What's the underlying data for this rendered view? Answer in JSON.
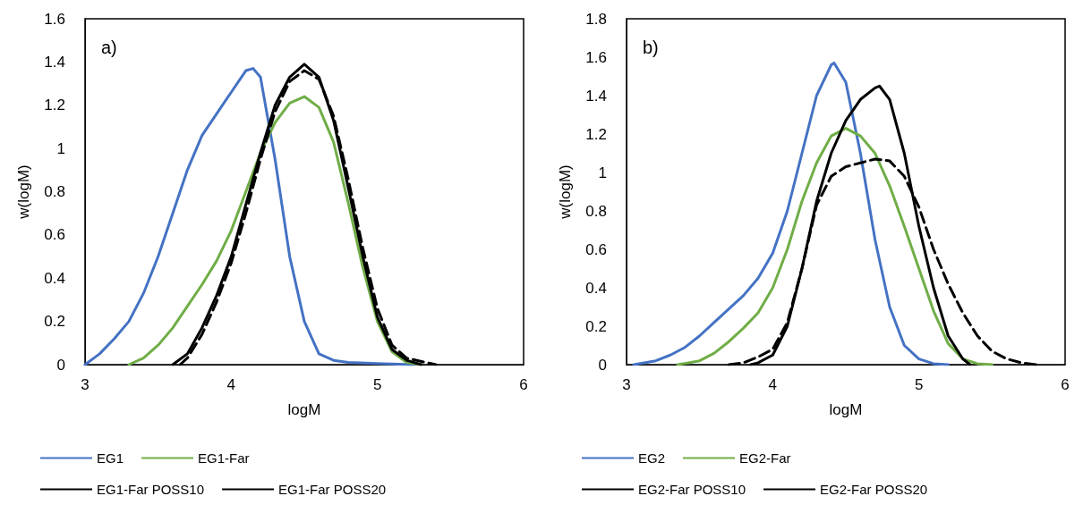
{
  "chart_data": [
    {
      "type": "line",
      "xlabel": "logM",
      "ylabel": "w(logM)",
      "annotations": [
        "a)"
      ],
      "xlim": [
        3,
        6
      ],
      "xticks": [
        3,
        4,
        5,
        6
      ],
      "ylim": [
        0,
        1.6
      ],
      "yticks": [
        0,
        0.2,
        0.4,
        0.6,
        0.8,
        1,
        1.2,
        1.4,
        1.6
      ],
      "grid": false,
      "legend": "bottom",
      "marker": "none",
      "series": [
        {
          "name": "EG1",
          "color": "#4472c4",
          "line_style": "solid",
          "x": [
            3.0,
            3.1,
            3.2,
            3.3,
            3.4,
            3.5,
            3.6,
            3.7,
            3.8,
            3.9,
            4.0,
            4.1,
            4.15,
            4.2,
            4.3,
            4.4,
            4.5,
            4.6,
            4.7,
            4.8,
            5.0,
            5.25
          ],
          "values": [
            0,
            0.05,
            0.12,
            0.2,
            0.33,
            0.5,
            0.7,
            0.9,
            1.06,
            1.16,
            1.26,
            1.36,
            1.37,
            1.33,
            0.95,
            0.5,
            0.2,
            0.05,
            0.02,
            0.01,
            0.005,
            0
          ]
        },
        {
          "name": "EG1-Far",
          "color": "#70ad47",
          "line_style": "solid",
          "x": [
            3.3,
            3.4,
            3.5,
            3.6,
            3.7,
            3.8,
            3.9,
            4.0,
            4.1,
            4.2,
            4.3,
            4.4,
            4.5,
            4.6,
            4.7,
            4.8,
            4.9,
            5.0,
            5.1,
            5.2,
            5.3
          ],
          "values": [
            0,
            0.03,
            0.09,
            0.17,
            0.27,
            0.37,
            0.48,
            0.62,
            0.8,
            0.98,
            1.12,
            1.21,
            1.24,
            1.19,
            1.03,
            0.75,
            0.45,
            0.2,
            0.06,
            0.01,
            0
          ]
        },
        {
          "name": "EG1-Far POSS10",
          "color": "#000000",
          "line_style": "solid",
          "x": [
            3.6,
            3.7,
            3.8,
            3.9,
            4.0,
            4.1,
            4.2,
            4.3,
            4.4,
            4.5,
            4.6,
            4.7,
            4.8,
            4.9,
            5.0,
            5.1,
            5.2,
            5.3
          ],
          "values": [
            0,
            0.05,
            0.17,
            0.32,
            0.5,
            0.74,
            0.98,
            1.2,
            1.33,
            1.39,
            1.33,
            1.13,
            0.82,
            0.5,
            0.22,
            0.07,
            0.02,
            0
          ]
        },
        {
          "name": "EG1-Far POSS20",
          "color": "#000000",
          "line_style": "dashed",
          "x": [
            3.65,
            3.7,
            3.8,
            3.9,
            4.0,
            4.1,
            4.2,
            4.3,
            4.4,
            4.5,
            4.6,
            4.7,
            4.8,
            4.9,
            5.0,
            5.1,
            5.2,
            5.4
          ],
          "values": [
            0,
            0.03,
            0.14,
            0.29,
            0.47,
            0.7,
            0.95,
            1.17,
            1.31,
            1.36,
            1.32,
            1.15,
            0.86,
            0.54,
            0.26,
            0.09,
            0.03,
            0
          ]
        }
      ]
    },
    {
      "type": "line",
      "xlabel": "logM",
      "ylabel": "w(logM)",
      "annotations": [
        "b)"
      ],
      "xlim": [
        3,
        6
      ],
      "xticks": [
        3,
        4,
        5,
        6
      ],
      "ylim": [
        0,
        1.8
      ],
      "yticks": [
        0,
        0.2,
        0.4,
        0.6,
        0.8,
        1,
        1.2,
        1.4,
        1.6,
        1.8
      ],
      "grid": false,
      "legend": "bottom",
      "marker": "none",
      "series": [
        {
          "name": "EG2",
          "color": "#4472c4",
          "line_style": "solid",
          "x": [
            3.05,
            3.2,
            3.3,
            3.4,
            3.5,
            3.6,
            3.7,
            3.8,
            3.9,
            4.0,
            4.1,
            4.2,
            4.3,
            4.4,
            4.42,
            4.5,
            4.6,
            4.7,
            4.8,
            4.9,
            5.0,
            5.1,
            5.2
          ],
          "values": [
            0,
            0.02,
            0.05,
            0.09,
            0.15,
            0.22,
            0.29,
            0.36,
            0.45,
            0.58,
            0.8,
            1.1,
            1.4,
            1.56,
            1.57,
            1.47,
            1.1,
            0.65,
            0.3,
            0.1,
            0.03,
            0.005,
            0
          ]
        },
        {
          "name": "EG2-Far",
          "color": "#70ad47",
          "line_style": "solid",
          "x": [
            3.35,
            3.5,
            3.6,
            3.7,
            3.8,
            3.9,
            4.0,
            4.1,
            4.2,
            4.3,
            4.4,
            4.5,
            4.6,
            4.7,
            4.8,
            4.9,
            5.0,
            5.1,
            5.2,
            5.3,
            5.4,
            5.5
          ],
          "values": [
            0,
            0.02,
            0.06,
            0.12,
            0.19,
            0.27,
            0.4,
            0.6,
            0.85,
            1.05,
            1.19,
            1.23,
            1.19,
            1.1,
            0.93,
            0.72,
            0.5,
            0.28,
            0.11,
            0.03,
            0.005,
            0
          ]
        },
        {
          "name": "EG2-Far POSS10",
          "color": "#000000",
          "line_style": "solid",
          "x": [
            3.85,
            3.9,
            4.0,
            4.1,
            4.2,
            4.3,
            4.4,
            4.5,
            4.6,
            4.7,
            4.73,
            4.8,
            4.9,
            5.0,
            5.1,
            5.2,
            5.3,
            5.35
          ],
          "values": [
            0,
            0.01,
            0.05,
            0.2,
            0.5,
            0.85,
            1.1,
            1.27,
            1.38,
            1.44,
            1.45,
            1.38,
            1.1,
            0.72,
            0.4,
            0.15,
            0.03,
            0
          ]
        },
        {
          "name": "EG2-Far POSS20",
          "color": "#000000",
          "line_style": "dashed",
          "x": [
            3.7,
            3.8,
            3.9,
            4.0,
            4.1,
            4.2,
            4.3,
            4.4,
            4.5,
            4.6,
            4.7,
            4.8,
            4.9,
            5.0,
            5.1,
            5.2,
            5.3,
            5.4,
            5.5,
            5.6,
            5.7,
            5.8
          ],
          "values": [
            0,
            0.01,
            0.04,
            0.08,
            0.22,
            0.5,
            0.83,
            0.98,
            1.03,
            1.05,
            1.07,
            1.06,
            0.98,
            0.82,
            0.6,
            0.42,
            0.27,
            0.15,
            0.07,
            0.03,
            0.01,
            0
          ]
        }
      ]
    }
  ]
}
